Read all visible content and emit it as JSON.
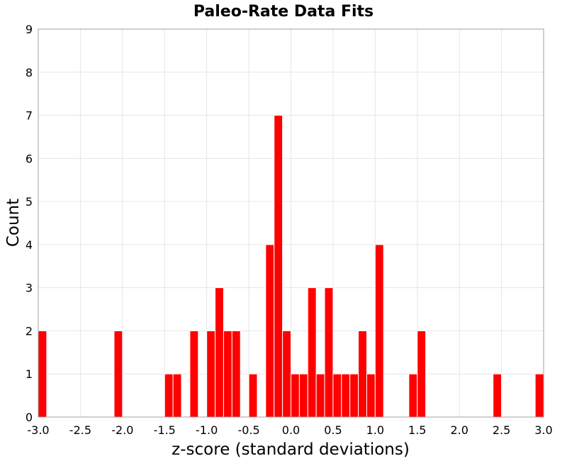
{
  "chart_data": {
    "type": "bar",
    "title": "Paleo-Rate Data Fits",
    "xlabel": "z-score (standard deviations)",
    "ylabel": "Count",
    "xlim": [
      -3.0,
      3.0
    ],
    "ylim": [
      0,
      9
    ],
    "bin_width": 0.1,
    "grid": true,
    "x_ticks": [
      "-3.0",
      "-2.5",
      "-2.0",
      "-1.5",
      "-1.0",
      "-0.5",
      "0.0",
      "0.5",
      "1.0",
      "1.5",
      "2.0",
      "2.5",
      "3.0"
    ],
    "y_ticks": [
      "0",
      "1",
      "2",
      "3",
      "4",
      "5",
      "6",
      "7",
      "8",
      "9"
    ],
    "bar_color": "#ff0000",
    "bins": [
      {
        "x": -2.95,
        "count": 2
      },
      {
        "x": -2.05,
        "count": 2
      },
      {
        "x": -1.45,
        "count": 1
      },
      {
        "x": -1.35,
        "count": 1
      },
      {
        "x": -1.15,
        "count": 2
      },
      {
        "x": -0.95,
        "count": 2
      },
      {
        "x": -0.85,
        "count": 3
      },
      {
        "x": -0.75,
        "count": 2
      },
      {
        "x": -0.65,
        "count": 2
      },
      {
        "x": -0.45,
        "count": 1
      },
      {
        "x": -0.25,
        "count": 4
      },
      {
        "x": -0.15,
        "count": 7
      },
      {
        "x": -0.05,
        "count": 2
      },
      {
        "x": 0.05,
        "count": 1
      },
      {
        "x": 0.15,
        "count": 1
      },
      {
        "x": 0.25,
        "count": 3
      },
      {
        "x": 0.35,
        "count": 1
      },
      {
        "x": 0.45,
        "count": 3
      },
      {
        "x": 0.55,
        "count": 1
      },
      {
        "x": 0.65,
        "count": 1
      },
      {
        "x": 0.75,
        "count": 1
      },
      {
        "x": 0.85,
        "count": 2
      },
      {
        "x": 0.95,
        "count": 1
      },
      {
        "x": 1.05,
        "count": 4
      },
      {
        "x": 1.45,
        "count": 1
      },
      {
        "x": 1.55,
        "count": 2
      },
      {
        "x": 2.45,
        "count": 1
      },
      {
        "x": 2.95,
        "count": 1
      }
    ]
  }
}
